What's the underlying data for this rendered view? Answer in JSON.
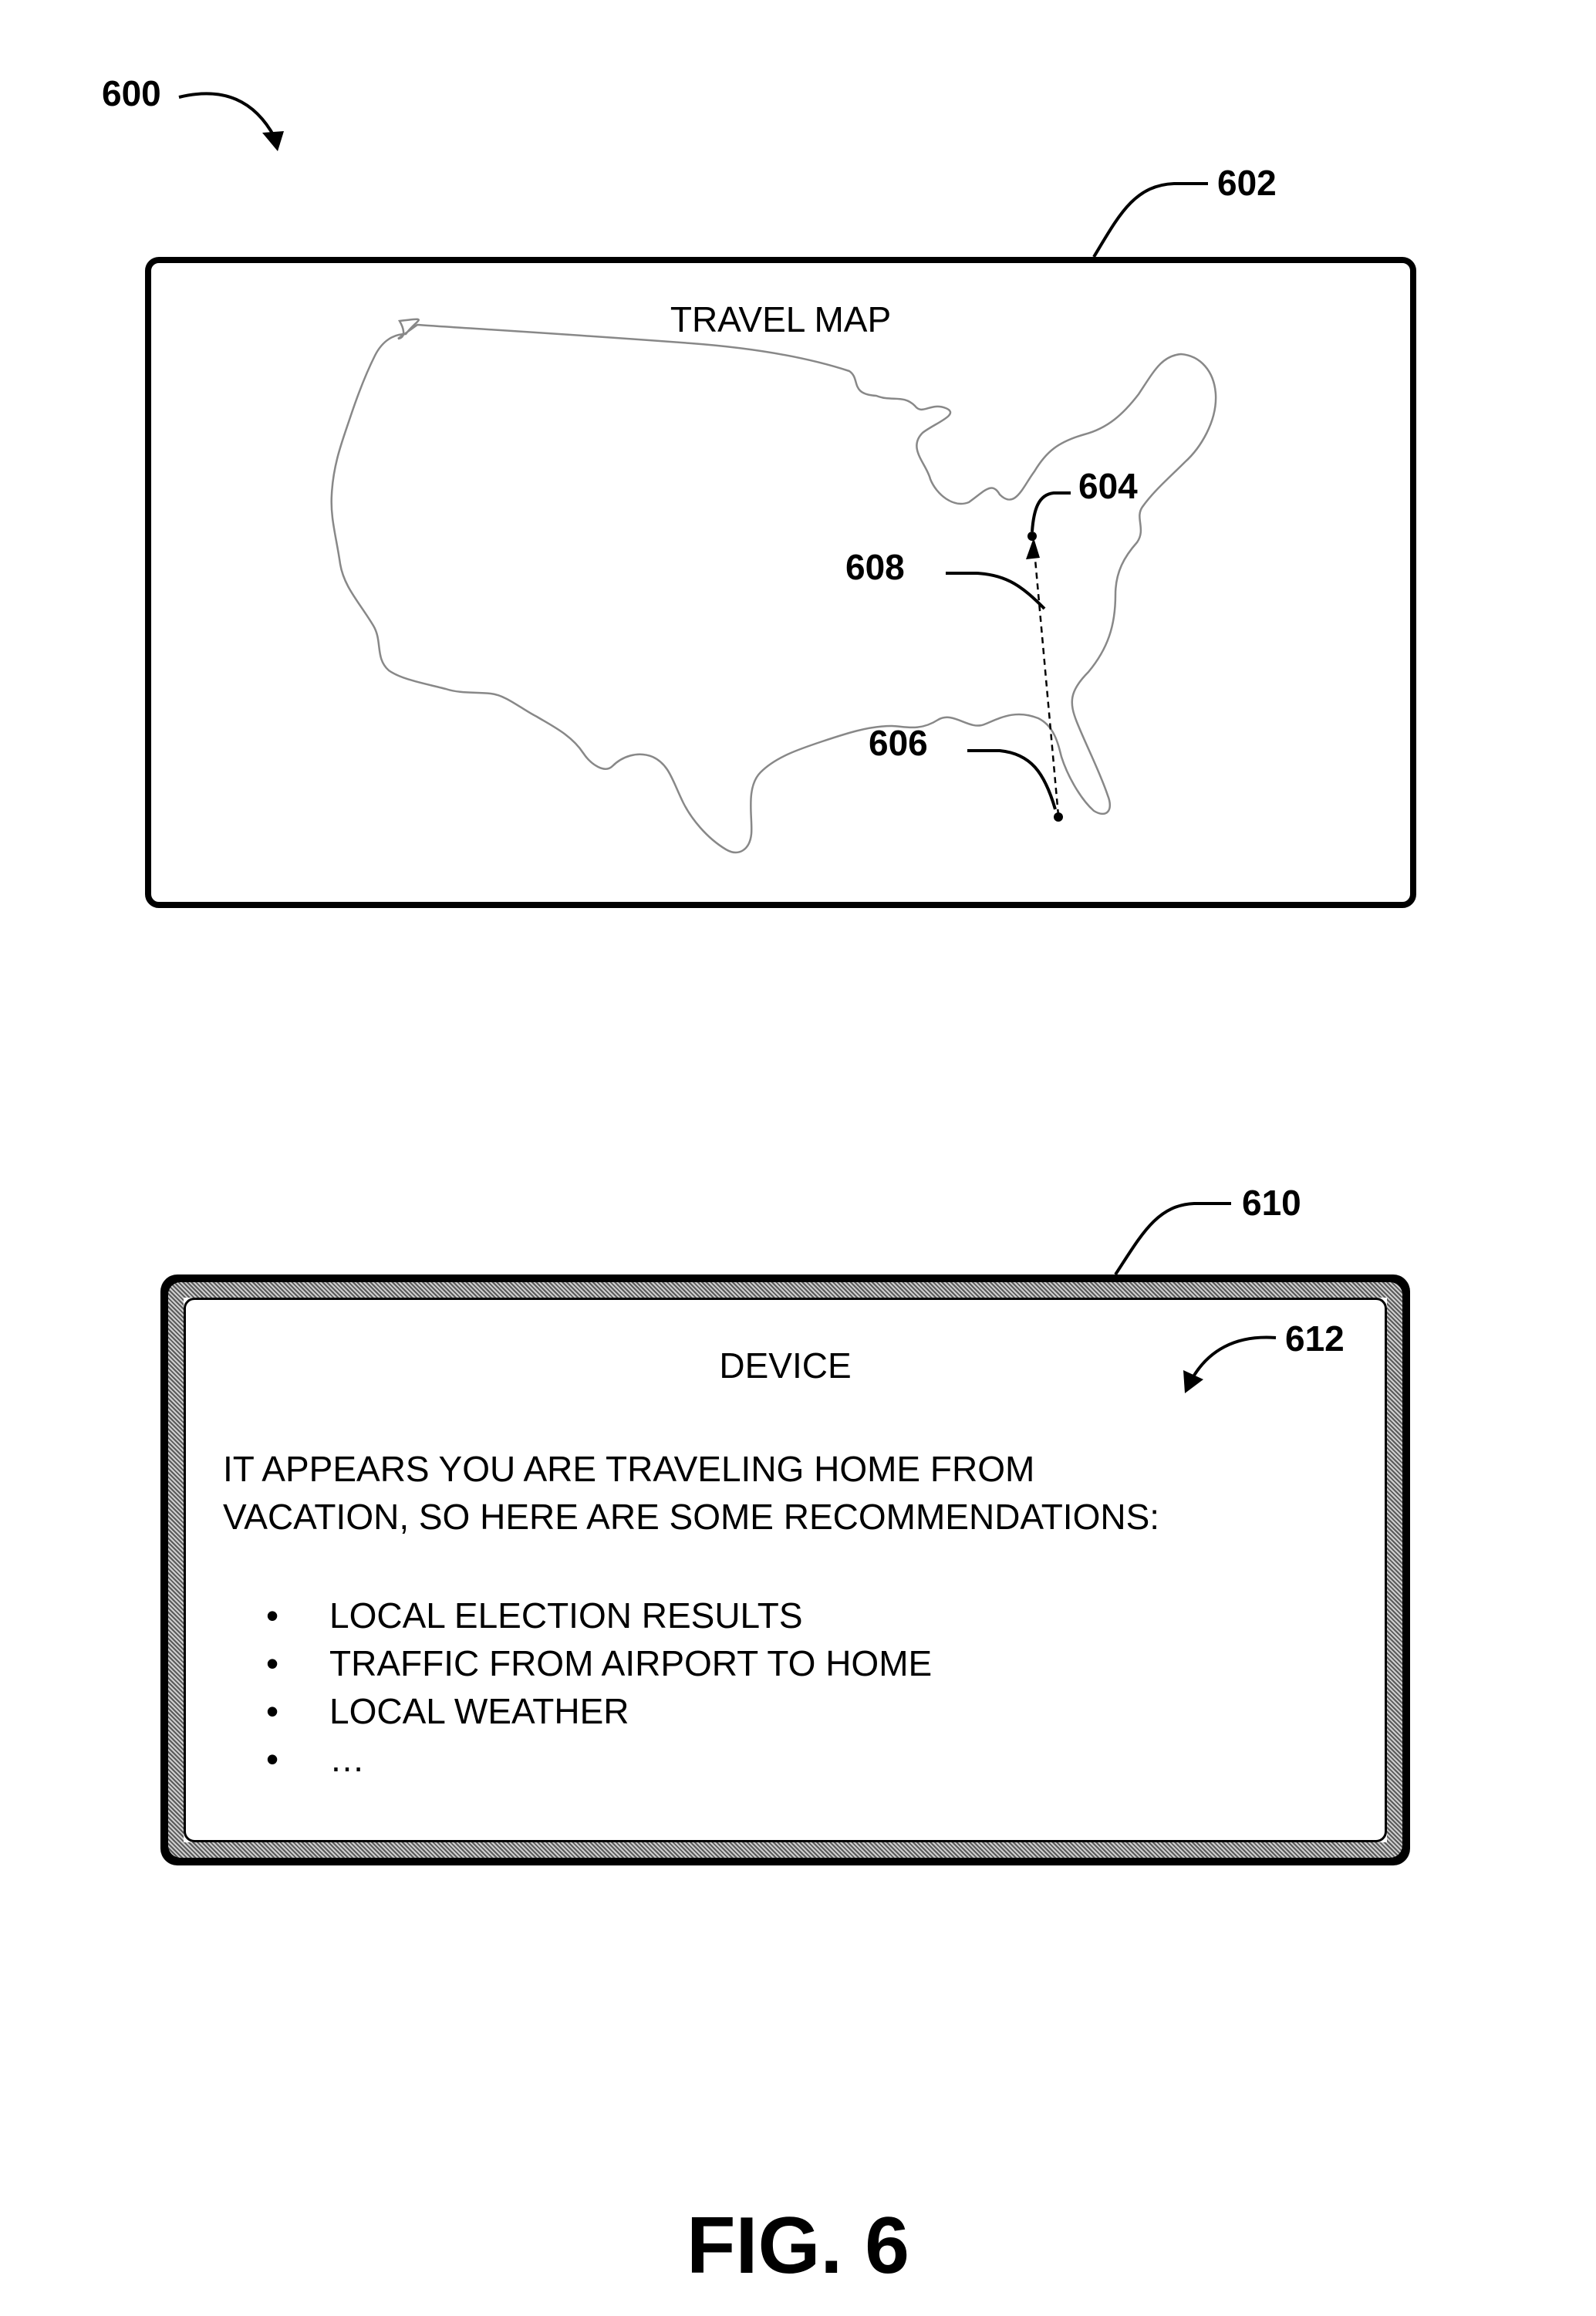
{
  "figure": {
    "number_label": "FIG. 6",
    "ref_600": "600",
    "ref_602": "602",
    "ref_604": "604",
    "ref_606": "606",
    "ref_608": "608",
    "ref_610": "610",
    "ref_612": "612"
  },
  "map_panel": {
    "title": "TRAVEL MAP"
  },
  "device_panel": {
    "title": "DEVICE",
    "message_line1": "IT APPEARS YOU ARE TRAVELING HOME FROM",
    "message_line2": "VACATION, SO HERE ARE SOME RECOMMENDATIONS:",
    "bullet_glyph": "•",
    "recommendations": [
      "LOCAL ELECTION RESULTS",
      "TRAFFIC FROM AIRPORT TO HOME",
      "LOCAL WEATHER",
      "…"
    ]
  }
}
